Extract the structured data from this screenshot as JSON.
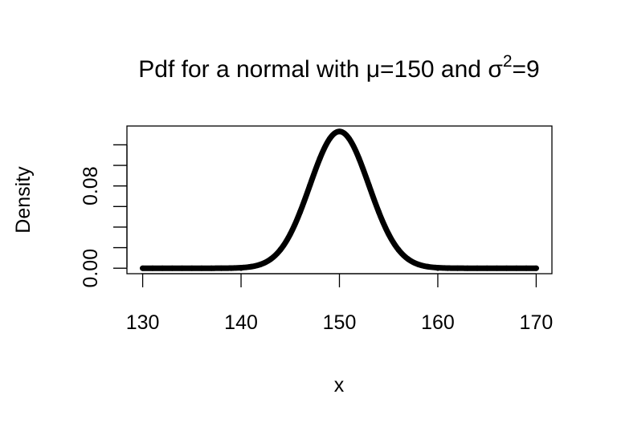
{
  "chart_data": {
    "type": "line",
    "title": {
      "prefix": "Pdf for a normal with ",
      "mu_symbol": "μ",
      "mu_value": "=150 and ",
      "sigma_symbol": "σ",
      "sigma_exponent": "2",
      "sigma_value": "=9"
    },
    "xlabel": "x",
    "ylabel": "Density",
    "xlim": [
      128.4,
      171.6
    ],
    "ylim": [
      -0.0053,
      0.1383
    ],
    "x_ticks": [
      130,
      140,
      150,
      160,
      170
    ],
    "x_tick_labels": [
      "130",
      "140",
      "150",
      "160",
      "170"
    ],
    "y_ticks": [
      0.0,
      0.02,
      0.04,
      0.06,
      0.08,
      0.1,
      0.12
    ],
    "y_tick_labels": [
      "0.00",
      "",
      "",
      "",
      "0.08",
      "",
      ""
    ],
    "distribution": {
      "mean": 150,
      "variance": 9
    },
    "series": [
      {
        "color": "#000000",
        "x": [
          130,
          131,
          132,
          133,
          134,
          135,
          136,
          137,
          138,
          139,
          140,
          141,
          142,
          143,
          144,
          145,
          146,
          147,
          148,
          149,
          150,
          151,
          152,
          153,
          154,
          155,
          156,
          157,
          158,
          159,
          160,
          161,
          162,
          163,
          164,
          165,
          166,
          167,
          168,
          169,
          170
        ],
        "y": [
          0.0,
          0.0,
          0.0,
          0.0,
          0.0,
          0.0,
          0.0,
          0.0,
          0.0,
          0.0,
          0.0001,
          0.0015,
          0.0038,
          0.0087,
          0.018,
          0.0332,
          0.0547,
          0.0807,
          0.1065,
          0.1258,
          0.133,
          0.1258,
          0.1065,
          0.0807,
          0.0547,
          0.0332,
          0.018,
          0.0087,
          0.0038,
          0.0015,
          0.0001,
          0.0,
          0.0,
          0.0,
          0.0,
          0.0,
          0.0,
          0.0,
          0.0,
          0.0,
          0.0
        ]
      }
    ]
  }
}
